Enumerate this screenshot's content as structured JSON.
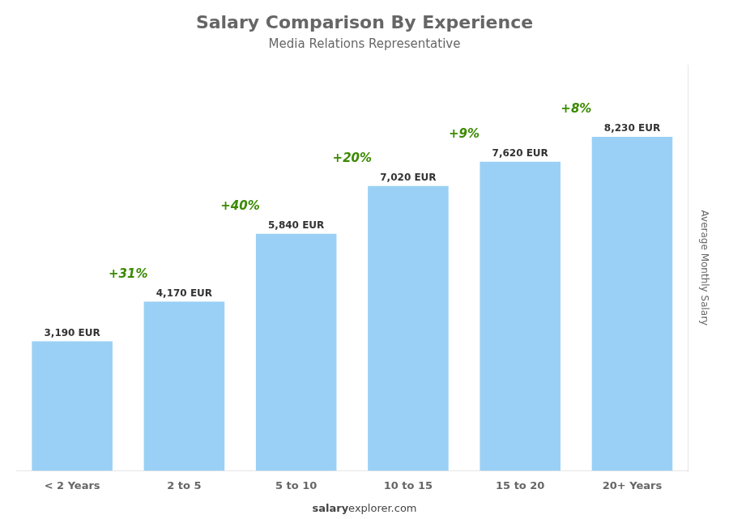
{
  "chart_data": {
    "type": "bar",
    "title": "Salary Comparison By Experience",
    "subtitle": "Media Relations Representative",
    "categories": [
      "< 2 Years",
      "2 to 5",
      "5 to 10",
      "10 to 15",
      "15 to 20",
      "20+ Years"
    ],
    "values": [
      3190,
      4170,
      5840,
      7020,
      7620,
      8230
    ],
    "value_labels": [
      "3,190 EUR",
      "4,170 EUR",
      "5,840 EUR",
      "7,020 EUR",
      "7,620 EUR",
      "8,230 EUR"
    ],
    "data_labels": true,
    "annotations": [
      "+31%",
      "+40%",
      "+20%",
      "+9%",
      "+8%"
    ],
    "ylabel": "Average Monthly Salary",
    "footer": [
      "salary",
      "explorer.com"
    ],
    "ylim": [
      0,
      10000
    ],
    "grid": false,
    "legend": false,
    "tick_labels": "x"
  }
}
